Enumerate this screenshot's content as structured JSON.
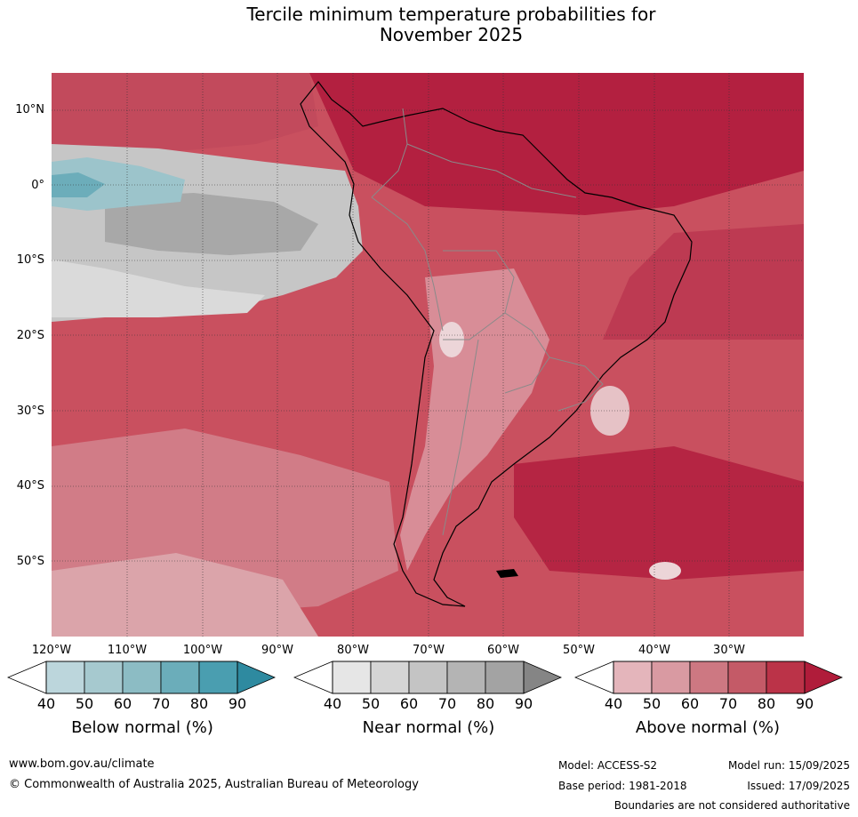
{
  "title": {
    "line1": "Tercile minimum temperature probabilities for",
    "line2": "November 2025"
  },
  "axes": {
    "lat_labels": [
      "10°N",
      "0°",
      "10°S",
      "20°S",
      "30°S",
      "40°S",
      "50°S"
    ],
    "lon_labels": [
      "120°W",
      "110°W",
      "100°W",
      "90°W",
      "80°W",
      "70°W",
      "60°W",
      "50°W",
      "40°W",
      "30°W"
    ]
  },
  "legends": [
    {
      "title": "Below normal (%)",
      "ticks": [
        "40",
        "50",
        "60",
        "70",
        "80",
        "90"
      ],
      "colors": [
        "#bcd6dc",
        "#a6c9cf",
        "#8cbcc4",
        "#6badba",
        "#4a9eb0",
        "#2e8aa0"
      ]
    },
    {
      "title": "Near normal (%)",
      "ticks": [
        "40",
        "50",
        "60",
        "70",
        "80",
        "90"
      ],
      "colors": [
        "#e6e6e6",
        "#d5d5d5",
        "#c4c4c4",
        "#b4b4b4",
        "#a3a3a3",
        "#858585"
      ]
    },
    {
      "title": "Above normal (%)",
      "ticks": [
        "40",
        "50",
        "60",
        "70",
        "80",
        "90"
      ],
      "colors": [
        "#e4b5bb",
        "#d99aa2",
        "#cd7882",
        "#c45a67",
        "#bb3348",
        "#b01c3a"
      ]
    }
  ],
  "footer": {
    "url": "www.bom.gov.au/climate",
    "copyright": "© Commonwealth of Australia 2025, Australian Bureau of Meteorology",
    "model": "Model: ACCESS-S2",
    "base_period": "Base period: 1981-2018",
    "model_run": "Model run: 15/09/2025",
    "issued": "Issued: 17/09/2025",
    "disclaimer": "Boundaries are not considered authoritative"
  }
}
